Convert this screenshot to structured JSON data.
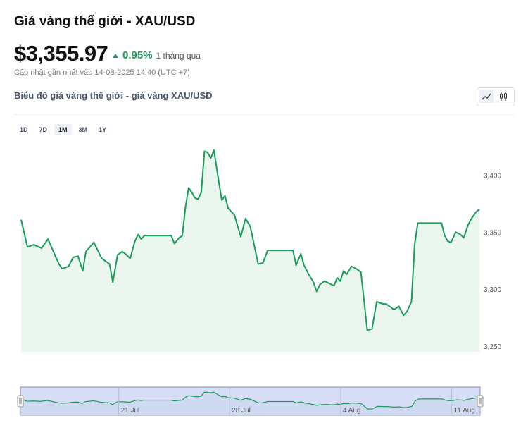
{
  "header": {
    "title": "Giá vàng thế giới - XAU/USD",
    "price": "$3,355.97",
    "change_pct": "0.95%",
    "change_period": "1 tháng qua",
    "updated": "Cập nhật gần nhất vào 14-08-2025 14:40 (UTC +7)"
  },
  "chart_header": {
    "subtitle": "Biểu đồ giá vàng thế giới - giá vàng XAU/USD",
    "line_icon": "line-chart-icon",
    "candle_icon": "candlestick-icon"
  },
  "ranges": {
    "d1": "1D",
    "d7": "7D",
    "m1": "1M",
    "m3": "3M",
    "y1": "1Y",
    "active": "1M"
  },
  "colors": {
    "line": "#1a9c5b",
    "area": "#eaf6ee",
    "navigator_fill": "#d7dcf7",
    "navigator_border": "#8a90a8",
    "up": "#1a9c5b"
  },
  "chart_data": {
    "type": "area",
    "series": [
      {
        "x": [
          0,
          0.4,
          0.8,
          1.3,
          1.7,
          2.2,
          2.4,
          2.6,
          3.0,
          3.3,
          3.6,
          3.9,
          4.1,
          4.6,
          5.1,
          5.6,
          5.8,
          6.1,
          6.4,
          6.6,
          6.9,
          7.2,
          7.4,
          7.6,
          7.8,
          7.9,
          8.3,
          8.6,
          8.9,
          9.3,
          9.5,
          9.7,
          10.0,
          10.2,
          10.4,
          10.6,
          10.8,
          11.0,
          11.2,
          11.4,
          11.6,
          11.8,
          12.0,
          12.2,
          12.5,
          12.7,
          12.9,
          13.1,
          13.5,
          13.9,
          14.2,
          14.5,
          15.0,
          15.3,
          15.6,
          15.8,
          16.0,
          16.3,
          16.6,
          16.9,
          17.2,
          17.4,
          17.7,
          17.9,
          18.2,
          18.5,
          18.7,
          18.9,
          19.2,
          19.5,
          19.8,
          20.0,
          20.2,
          20.4,
          20.6,
          20.9,
          21.2,
          21.5,
          21.7,
          21.9,
          22.2,
          22.5,
          22.7,
          22.9,
          23.1,
          23.3,
          23.6,
          23.9,
          24.2,
          24.4,
          24.7,
          24.9,
          25.1,
          25.4,
          25.6,
          25.8,
          26.1,
          26.3,
          26.6,
          26.8,
          27.0,
          27.2,
          27.5,
          27.8,
          28.0,
          28.3,
          28.5,
          28.8,
          29.0
        ],
        "values": [
          3361,
          3337,
          3339,
          3336,
          3344,
          3328,
          3322,
          3318,
          3320,
          3328,
          3329,
          3316,
          3333,
          3341,
          3327,
          3322,
          3306,
          3330,
          3333,
          3331,
          3327,
          3342,
          3348,
          3344,
          3347,
          3347,
          3347,
          3347,
          3347,
          3347,
          3347,
          3340,
          3345,
          3347,
          3372,
          3389,
          3385,
          3380,
          3379,
          3385,
          3421,
          3420,
          3415,
          3422,
          3395,
          3378,
          3382,
          3371,
          3365,
          3346,
          3362,
          3355,
          3322,
          3323,
          3334,
          3334,
          3334,
          3334,
          3334,
          3334,
          3334,
          3321,
          3331,
          3321,
          3313,
          3306,
          3298,
          3304,
          3307,
          3305,
          3303,
          3310,
          3307,
          3316,
          3313,
          3320,
          3318,
          3315,
          3290,
          3264,
          3265,
          3289,
          3288,
          3287,
          3287,
          3285,
          3282,
          3285,
          3277,
          3280,
          3289,
          3339,
          3358,
          3358,
          3358,
          3358,
          3358,
          3358,
          3358,
          3347,
          3342,
          3341,
          3350,
          3348,
          3345,
          3357,
          3362,
          3368,
          3370
        ]
      }
    ],
    "ylim": [
      3245,
      3430
    ],
    "yticks": [
      "3,250",
      "3,300",
      "3,350",
      "3,400"
    ],
    "navigator_xticks": [
      "21 Jul",
      "28 Jul",
      "4 Aug",
      "11 Aug"
    ]
  }
}
